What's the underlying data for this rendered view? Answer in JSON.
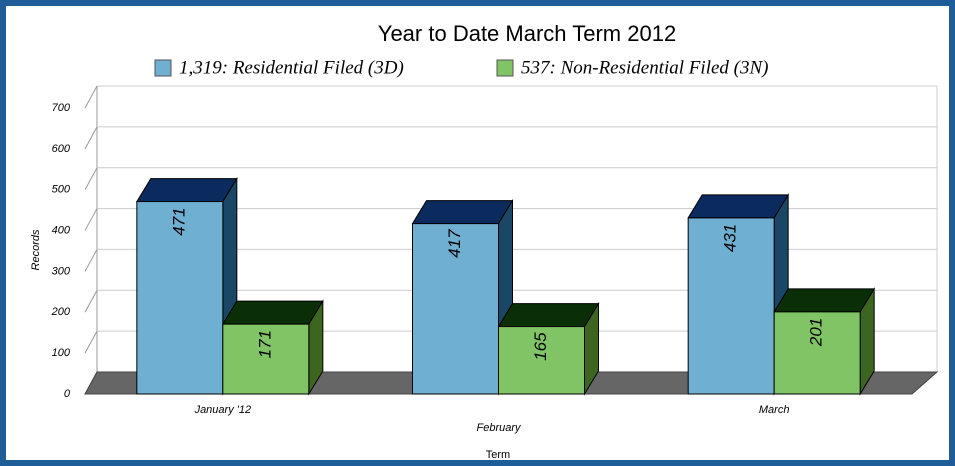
{
  "chart_data": {
    "type": "bar3d",
    "title": "Year to Date March Term 2012",
    "categories": [
      "January '12",
      "February",
      "March"
    ],
    "series": [
      {
        "name": "1,319: Residential Filed (3D)",
        "color": "#6fb0d2",
        "top": "#0b2a5e",
        "side": "#1b4766",
        "values": [
          471,
          417,
          431
        ]
      },
      {
        "name": "537: Non-Residential Filed (3N)",
        "color": "#80c465",
        "top": "#0a2e06",
        "side": "#3c6620",
        "values": [
          171,
          165,
          201
        ]
      }
    ],
    "ylim": [
      0,
      700
    ],
    "yticks": [
      0,
      100,
      200,
      300,
      400,
      500,
      600,
      700
    ],
    "y_label": "Records",
    "x_label": "Term",
    "grid": true
  }
}
